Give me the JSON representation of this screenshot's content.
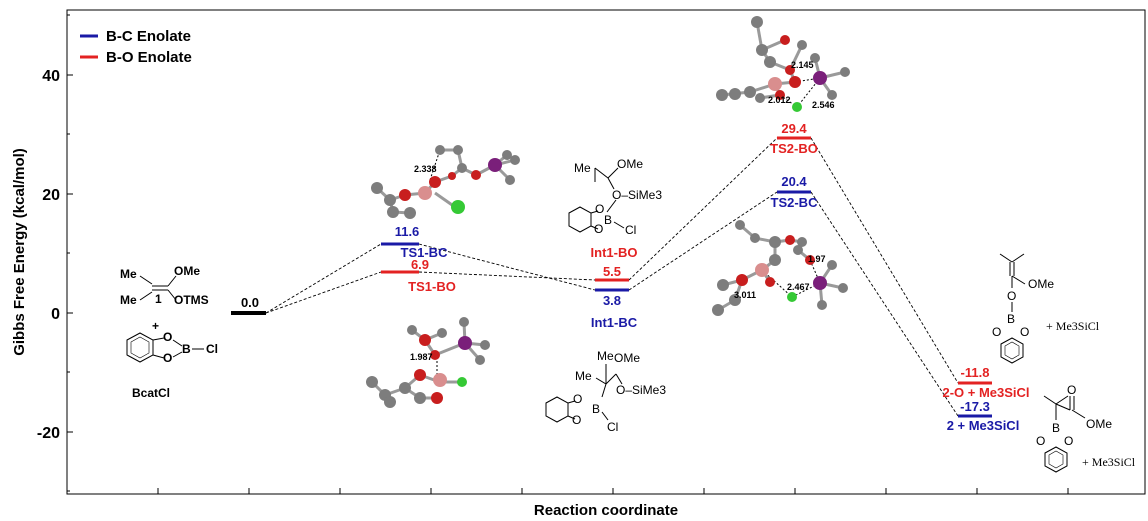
{
  "axes": {
    "ylabel": "Gibbs Free Energy (kcal/mol)",
    "xlabel": "Reaction coordinate",
    "ylim": [
      -30,
      50
    ],
    "yticks": [
      -20,
      0,
      20,
      40
    ]
  },
  "legend": [
    {
      "label": "B-C Enolate",
      "color": "#1a1aa6"
    },
    {
      "label": "B-O Enolate",
      "color": "#e32222"
    }
  ],
  "colors": {
    "bc": "#1a1aa6",
    "bo": "#e32222",
    "ref": "#000000"
  },
  "levels": {
    "ref": {
      "value": "0.0"
    },
    "ts1bc": {
      "value": "11.6",
      "label": "TS1-BC"
    },
    "ts1bo": {
      "value": "6.9",
      "label": "TS1-BO"
    },
    "int1bo": {
      "value": "5.5",
      "label": "Int1-BO"
    },
    "int1bc": {
      "value": "3.8",
      "label": "Int1-BC"
    },
    "ts2bo": {
      "value": "29.4",
      "label": "TS2-BO"
    },
    "ts2bc": {
      "value": "20.4",
      "label": "TS2-BC"
    },
    "p_bo": {
      "value": "-11.8",
      "label": "2-O + Me3SiCl"
    },
    "p_bc": {
      "value": "-17.3",
      "label": "2 + Me3SiCl"
    }
  },
  "distances": {
    "ts1bc": "2.338",
    "ts1bo": "1.987",
    "ts2bo": [
      "2.145",
      "2.012",
      "2.546"
    ],
    "ts2bc": [
      "1.97",
      "3.011",
      "2.467"
    ]
  },
  "structures": {
    "reactant": {
      "me1": "Me",
      "me2": "Me",
      "ome": "OMe",
      "otms": "OTMS",
      "num": "1",
      "plus": "+",
      "b": "B",
      "cl": "Cl",
      "o1": "O",
      "o2": "O",
      "name": "BcatCl"
    },
    "int1bo": {
      "me": "Me",
      "ome": "OMe",
      "osime3": "O–SiMe3",
      "b": "B",
      "cl": "Cl",
      "o1": "O",
      "o2": "O"
    },
    "int1bc": {
      "me1": "Me",
      "me2": "Me",
      "ome": "OMe",
      "osime3": "O–SiMe3",
      "b": "B",
      "cl": "Cl",
      "o1": "O",
      "o2": "O"
    },
    "prod_bo": {
      "ome": "OMe",
      "o": "O",
      "b": "B",
      "o1": "O",
      "o2": "O",
      "plus": "+ Me3SiCl"
    },
    "prod_bc": {
      "o": "O",
      "ome": "OMe",
      "b": "B",
      "o1": "O",
      "o2": "O",
      "plus": "+ Me3SiCl"
    }
  }
}
